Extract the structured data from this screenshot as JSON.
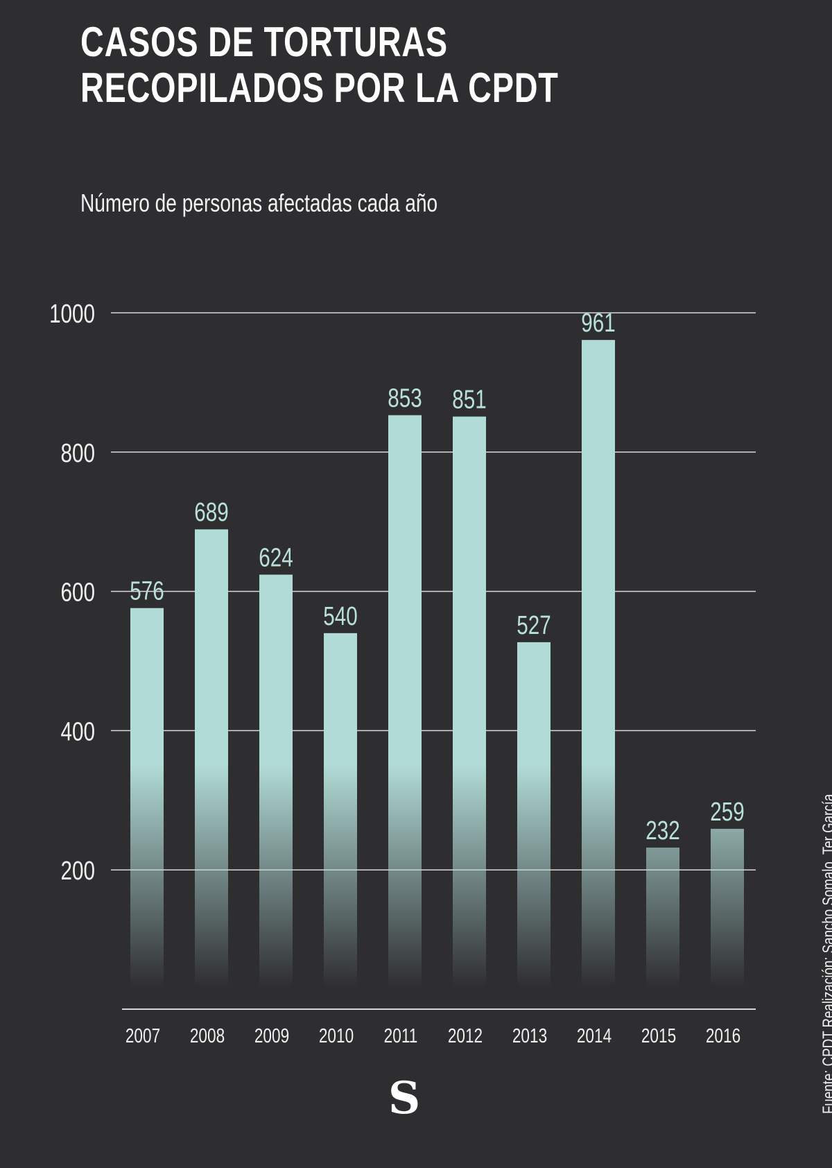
{
  "title_lines": [
    "CASOS DE TORTURAS",
    "RECOPILADOS POR LA CPDT"
  ],
  "subtitle": "Número de personas afectadas cada año",
  "credit": "Fuente: CPDT  Realización: Sancho Somalo, Ter García",
  "logo": "S",
  "colors": {
    "background": "#2e2d30",
    "bar": "#b1dbd6",
    "label": "#b9e0da",
    "grid": "#d8d8d8",
    "axis_text": "#f0f0f0"
  },
  "chart_data": {
    "type": "bar",
    "title": "CASOS DE TORTURAS RECOPILADOS POR LA CPDT",
    "subtitle": "Número de personas afectadas cada año",
    "xlabel": "",
    "ylabel": "",
    "categories": [
      "2007",
      "2008",
      "2009",
      "2010",
      "2011",
      "2012",
      "2013",
      "2014",
      "2015",
      "2016"
    ],
    "values": [
      576,
      689,
      624,
      540,
      853,
      851,
      527,
      961,
      232,
      259
    ],
    "ylim": [
      0,
      1000
    ],
    "yticks": [
      200,
      400,
      600,
      800,
      1000
    ],
    "grid": true,
    "legend": "none",
    "data_labels": true
  }
}
